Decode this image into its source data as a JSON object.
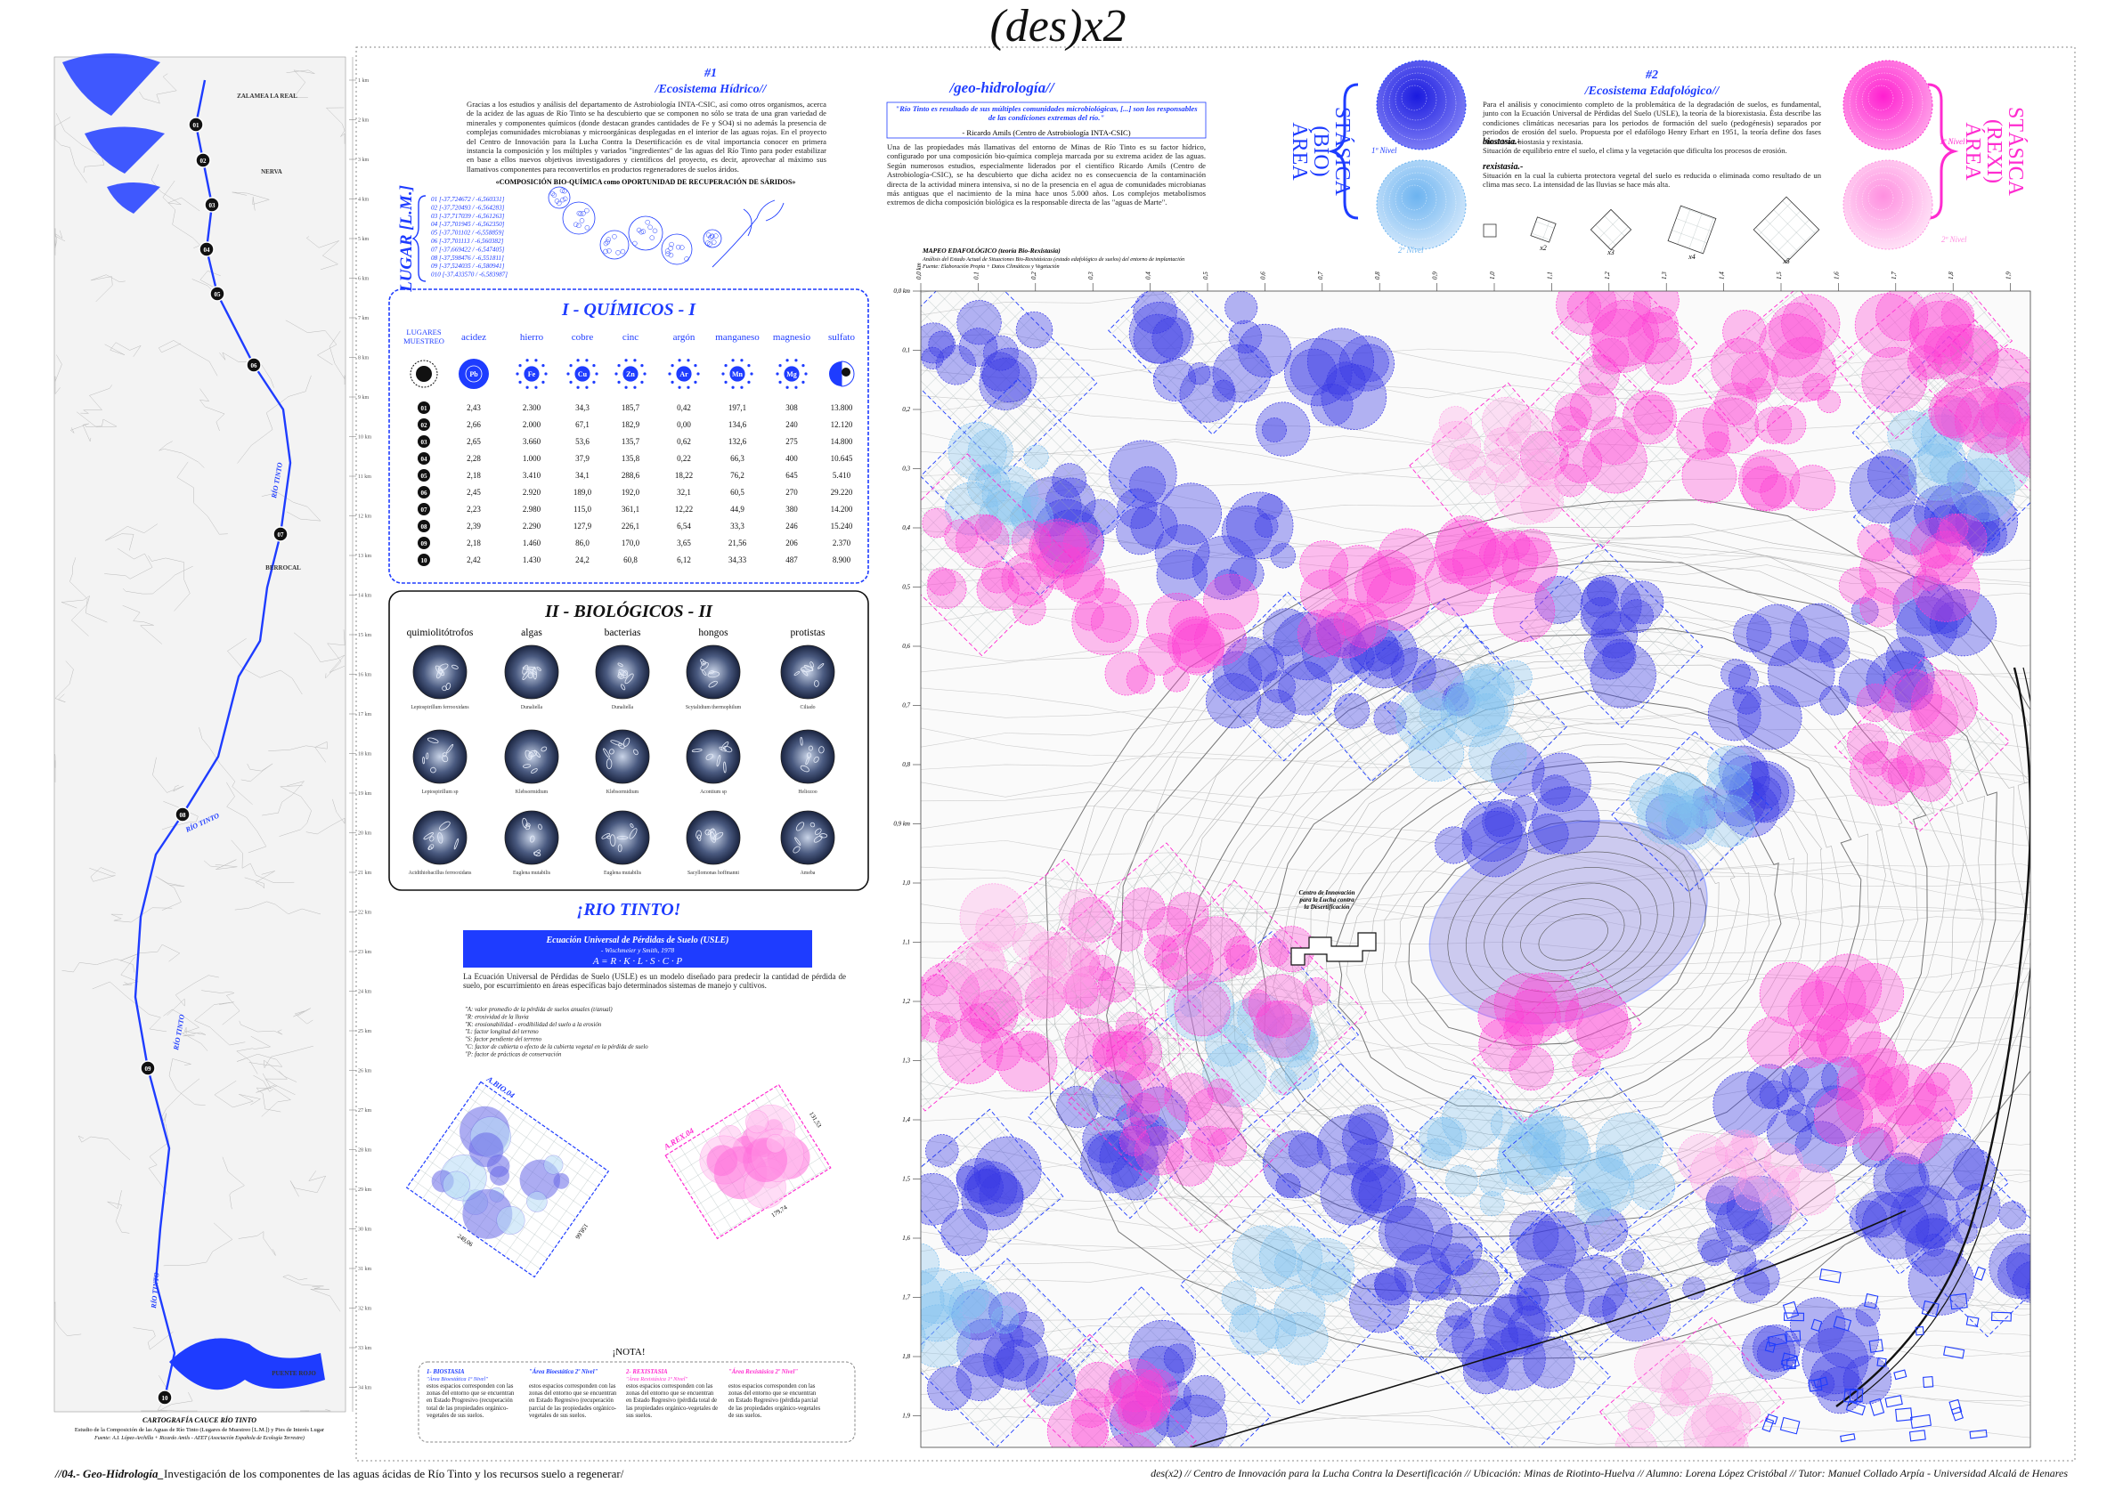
{
  "title": "(des)x2",
  "left_map": {
    "km_labels": [
      "1 km",
      "2 km",
      "3 km",
      "4 km",
      "5 km",
      "6 km",
      "7 km",
      "8 km",
      "9 km",
      "10 km",
      "11 km",
      "12 km",
      "13 km",
      "14 km",
      "15 km",
      "16 km",
      "17 km",
      "18 km",
      "19 km",
      "20 km",
      "21 km",
      "22 km",
      "23 km",
      "24 km",
      "25 km",
      "26 km",
      "27 km",
      "28 km",
      "29 km",
      "30 km",
      "31 km",
      "32 km",
      "33 km",
      "34 km"
    ],
    "places": [
      "NERVA",
      "BERROCAL",
      "ZALAMEA LA REAL",
      "PUENTE ROJO"
    ],
    "river_labels": [
      "RÍO TINTO",
      "RÍO TINTO",
      "RÍO TINTO",
      "RÍO TINTO"
    ],
    "samples": [
      "01",
      "02",
      "03",
      "04",
      "05",
      "06",
      "07",
      "08",
      "09",
      "10"
    ],
    "caption": "CARTOGRAFÍA CAUCE RÍO TINTO",
    "source": "Estudio de la Composición de las Aguas de Río Tinto (Lugares de Muestreo [L.M.]) y Pies de Interés Lugar",
    "credit": "Fuente: A.I. López-Archilla + Ricardo Amils - AEET (Asociación Española de Ecología Terrestre)"
  },
  "section1": {
    "number": "#1",
    "heading": "/Ecosistema Hídrico//",
    "body": "Gracias a los estudios y análisis del departamento de Astrobiología INTA-CSIC, así como otros organismos, acerca de la acidez de las aguas de Río Tinto se ha descubierto que se componen no sólo se trata de una gran variedad de minerales y componentes químicos (donde destacan grandes cantidades de Fe y SO4) si no además la presencia de complejas comunidades microbianas y microorgánicas desplegadas en el interior de las aguas rojas. En el proyecto del Centro de Innovación para la Lucha Contra la Desertificación es de vital importancia conocer en primera instancia la composición y los múltiples y variados \"ingredientes\" de las aguas del Río Tinto para poder estabilizar en base a ellos nuevos objetivos investigadores y científicos del proyecto, es decir, aprovechar al máximo sus llamativos componentes para reconvertirlos en productos regeneradores de suelos áridos.",
    "subtitle": "«COMPOSICIÓN BIO-QUÍMICA como OPORTUNIDAD DE RECUPERACIÓN DE SÁRIDOS»",
    "place_label": "LUGAR [L.M.]",
    "coordinates": [
      "01 [-37,724672 / -6,560331]",
      "02 [-37,720493 / -6,564283]",
      "03 [-37,717039 / -6,561263]",
      "04 [-37,701945 / -6,562350]",
      "05 [-37,701102 / -6,558859]",
      "06 [-37,701113 / -6,560382]",
      "07 [-37,669422 / -6,547405]",
      "08 [-37,598476 / -6,551811]",
      "09 [-37,524035 / -6,580941]",
      "010 [-37,433570 / -6,583987]"
    ]
  },
  "chemicals": {
    "title": "I - QUÍMICOS - I",
    "row_header": [
      "LUGARES",
      "MUESTREO"
    ],
    "columns": [
      {
        "name": "acidez",
        "symbol": "Pb"
      },
      {
        "name": "hierro",
        "symbol": "Fe"
      },
      {
        "name": "cobre",
        "symbol": "Cu"
      },
      {
        "name": "cinc",
        "symbol": "Zn"
      },
      {
        "name": "argón",
        "symbol": "Ar"
      },
      {
        "name": "manganeso",
        "symbol": "Mn"
      },
      {
        "name": "magnesio",
        "symbol": "Mg"
      },
      {
        "name": "sulfato"
      }
    ],
    "rows": [
      {
        "id": "01",
        "values": [
          "2,43",
          "2.300",
          "34,3",
          "185,7",
          "0,42",
          "197,1",
          "308",
          "13.800"
        ]
      },
      {
        "id": "02",
        "values": [
          "2,66",
          "2.000",
          "67,1",
          "182,9",
          "0,00",
          "134,6",
          "240",
          "12.120"
        ]
      },
      {
        "id": "03",
        "values": [
          "2,65",
          "3.660",
          "53,6",
          "135,7",
          "0,62",
          "132,6",
          "275",
          "14.800"
        ]
      },
      {
        "id": "04",
        "values": [
          "2,28",
          "1.000",
          "37,9",
          "135,8",
          "0,22",
          "66,3",
          "400",
          "10.645"
        ]
      },
      {
        "id": "05",
        "values": [
          "2,18",
          "3.410",
          "34,1",
          "288,6",
          "18,22",
          "76,2",
          "645",
          "5.410"
        ]
      },
      {
        "id": "06",
        "values": [
          "2,45",
          "2.920",
          "189,0",
          "192,0",
          "32,1",
          "60,5",
          "270",
          "29.220"
        ]
      },
      {
        "id": "07",
        "values": [
          "2,23",
          "2.980",
          "115,0",
          "361,1",
          "12,22",
          "44,9",
          "380",
          "14.200"
        ]
      },
      {
        "id": "08",
        "values": [
          "2,39",
          "2.290",
          "127,9",
          "226,1",
          "6,54",
          "33,3",
          "246",
          "15.240"
        ]
      },
      {
        "id": "09",
        "values": [
          "2,18",
          "1.460",
          "86,0",
          "170,0",
          "3,65",
          "21,56",
          "206",
          "2.370"
        ]
      },
      {
        "id": "10",
        "values": [
          "2,42",
          "1.430",
          "24,2",
          "60,8",
          "6,12",
          "34,33",
          "487",
          "8.900"
        ]
      }
    ]
  },
  "biological": {
    "title": "II - BIOLÓGICOS - II",
    "columns": [
      "quimiolitótrofos",
      "algas",
      "bacterias",
      "hongos",
      "protistas"
    ],
    "captions": [
      [
        "Leptospirillum ferrooxidans",
        "Dunaliella",
        "Dunaliella",
        "Scytalidium thermophilum",
        "Ciliado"
      ],
      [
        "Leptospirillum sp",
        "Klebsormidium",
        "Klebsormidium",
        "Acontium sp",
        "Heliozoo"
      ],
      [
        "Acidithiobacillus ferrooxidans",
        "Euglena mutabilis",
        "Euglena mutabilis",
        "Sacyllomonas hoffmanni",
        "Ameba"
      ]
    ]
  },
  "rio_tinto": {
    "title": "¡RIO TINTO!",
    "usle_title": "Ecuación Universal de Pérdidas de Suelo (USLE)",
    "usle_authors": "- Wischmeier y Smith, 1978",
    "usle_formula": "A = R · K · L · S · C · P",
    "body": "La Ecuación Universal de Pérdidas de Suelo (USLE) es un modelo diseñado para predecir la cantidad de pérdida de suelo, por escurrimiento en áreas específicas bajo determinados sistemas de manejo y cultivos.",
    "factors": [
      "\"A: valor promedio de la pérdida de suelos anuales (t/anual)",
      "\"R: erosividad de la lluvia",
      "\"K: erosionabilidad - erodibilidad del suelo a la erosión",
      "\"L: factor longitud del terreno",
      "\"S: factor pendiente del terreno",
      "\"C: factor de cubierta o efecto de la cubierta vegetal en la pérdida de suelo",
      "\"P: factor de prácticas de conservación"
    ]
  },
  "diagrams": [
    {
      "label": "A.BIO.04",
      "dims": [
        "249,06",
        "158,66"
      ]
    },
    {
      "label": "A.REX.04",
      "dims": [
        "179,74",
        "131,53"
      ]
    }
  ],
  "nota": {
    "title": "¡NOTA!",
    "notes": [
      {
        "title": "1- BIOSTASIA",
        "sub": "\"Área Bioestática 1º Nivel\"",
        "body": "estos espacios corresponden con las zonas del entorno que se encuentran en Estado Progresivo (recuperación total de las propiedades orgánico-vegetales de sus suelos."
      },
      {
        "title": "\"Área Bioestática 2º Nivel\"",
        "sub": "",
        "body": "estos espacios corresponden con las zonas del entorno que se encuentran en Estado Regresivo (recuperación parcial de las propiedades orgánico-vegetales de sus suelos."
      },
      {
        "title": "2- REXISTASIA",
        "sub": "\"Área Rexistásica 1º Nivel\"",
        "body": "estos espacios corresponden con las zonas del entorno que se encuentran en Estado Regresivo (pérdida total de las propiedades orgánico-vegetales de sus suelos."
      },
      {
        "title": "\"Área Rexistásica 2º Nivel\"",
        "sub": "",
        "body": "estos espacios corresponden con las zonas del entorno que se encuentran en Estado Regresivo (pérdida parcial de las propiedades orgánico-vegetales de sus suelos."
      }
    ]
  },
  "geo": {
    "heading": "/geo-hidrología//",
    "quote": "\"Río Tinto es resultado de sus múltiples comunidades microbiológicas, [...] son los responsables de las condiciones extremas del río.\"",
    "quote_author": "- Ricardo Amils (Centro de Astrobiología INTA-CSIC)",
    "body": "Una de las propiedades más llamativas del entorno de Minas de Río Tinto es su factor hídrico, configurado por una composición bio-química compleja marcada por su extrema acidez de las aguas. Según numerosos estudios, especialmente liderados por el científico Ricardo Amils (Centro de Astrobiología-CSIC), se ha descubierto que dicha acidez no es consecuencia de la contaminación directa de la actividad minera intensiva, si no de la presencia en el agua de comunidades microbianas más antiguas que el nacimiento de la mina hace unos 5.000 años. Los complejos metabolismos extremos de dicha composición biológica es la responsable directa de las \"aguas de Marte\"."
  },
  "section2": {
    "number": "#2",
    "heading": "/Ecosistema Edafológico//",
    "body": "Para el análisis y conocimiento completo de la problemática de la degradación de suelos, es fundamental, junto con la Ecuación Universal de Pérdidas del Suelo (USLE), la teoría de la biorexistasia. Ésta describe las condiciones climáticas necesarias para los periodos de formación del suelo (pedogénesis) separados por periodos de erosión del suelo. Propuesta por el edafólogo Henry Erhart en 1951, la teoría define dos fases climáticas: biostasia y rexistasia.",
    "terms": [
      {
        "term": "biostasia.-",
        "def": "Situación de equilibrio entre el suelo, el clima y la vegetación que dificulta los procesos de erosión."
      },
      {
        "term": "rexistasia.-",
        "def": "Situación en la cual la cubierta protectora vegetal del suelo es reducida o eliminada como resultado de un clima mas seco. La intensidad de las lluvias se hace más alta."
      }
    ]
  },
  "areas": {
    "bio": [
      "ÁREA",
      "(BIO)",
      "STÁSICA"
    ],
    "rexi": [
      "ÁREA",
      "(REXI)",
      "STÁSICA"
    ],
    "level1": "1º Nivel",
    "level2": "2º Nivel"
  },
  "grid_diagrams": [
    "x2",
    "x3",
    "x4",
    "x5"
  ],
  "map": {
    "title": "MAPEO EDAFOLÓGICO (teoría Bio-Rexistasia)",
    "subtitle": "Análisis del Estado Actual de Situaciones Bio-Rexistásicas (estado edafológico de suelos) del entorno de implantación",
    "source": "Fuente: Elaboración Propia + Datos Climáticos y Vegetación",
    "x_ticks": [
      "0,0 km",
      "0,1",
      "0,2",
      "0,3",
      "0,4",
      "0,5",
      "0,6",
      "0,7",
      "0,8",
      "0,9",
      "1,0",
      "1,1",
      "1,2",
      "1,3",
      "1,4",
      "1,5",
      "1,6",
      "1,7",
      "1,8",
      "1,9"
    ],
    "y_ticks": [
      "0,0 km",
      "0,1",
      "0,2",
      "0,3",
      "0,4",
      "0,5",
      "0,6",
      "0,7",
      "0,8",
      "0,9 km",
      "1,0",
      "1,1",
      "1,2",
      "1,3",
      "1,4",
      "1,5",
      "1,6",
      "1,7",
      "1,8",
      "1,9"
    ],
    "center_label": [
      "Centro de Innovación",
      "para la Lucha contra",
      "la Desertificación"
    ]
  },
  "footer": {
    "left_bold": "//04.- Geo-Hidrología_",
    "left": "Investigación de los componentes de las aguas ácidas de Río Tinto y los recursos suelo a regenerar/",
    "right": "des(x2) // Centro de Innovación para la Lucha Contra la Desertificación // Ubicación: Minas de Riotinto-Huelva // Alumno: Lorena López Cristóbal // Tutor: Manuel Collado Arpía - Universidad Alcalá de Henares"
  }
}
